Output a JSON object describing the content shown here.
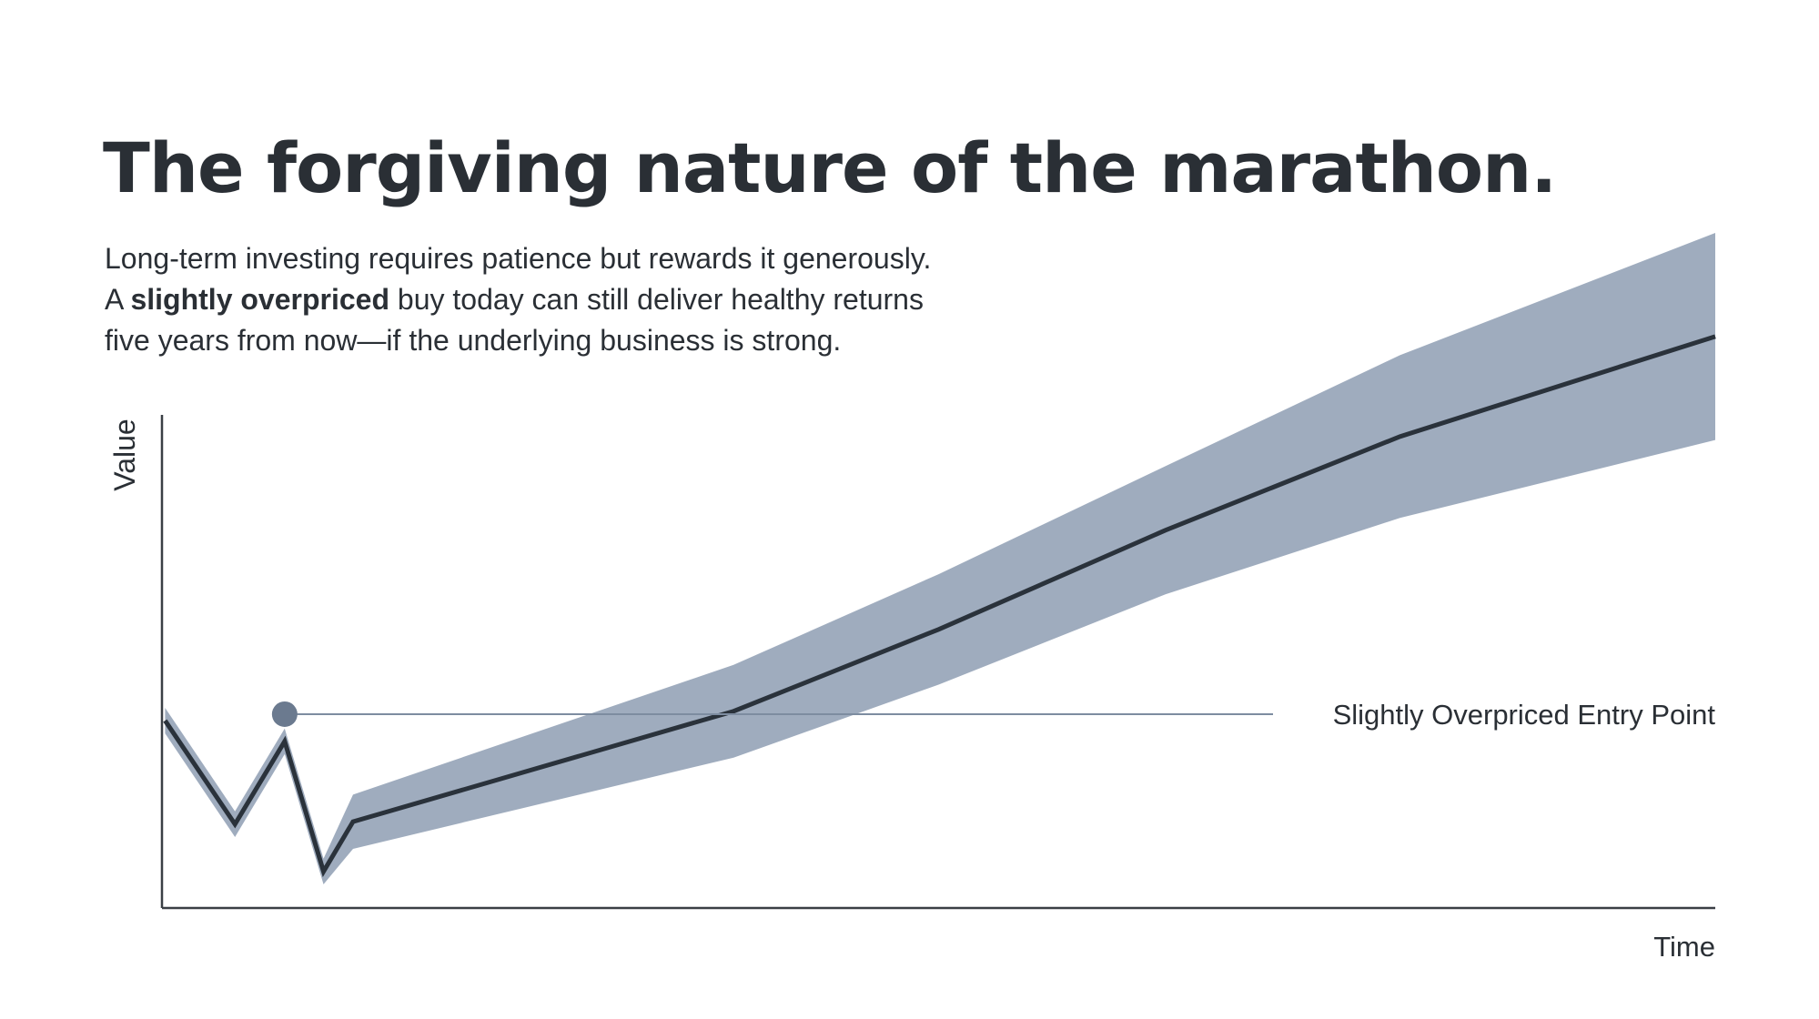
{
  "title": "The forgiving nature of the marathon.",
  "subtitle": {
    "line1": "Long-term investing requires patience but rewards it generously.",
    "line2_pre": "A ",
    "line2_bold": "slightly overpriced",
    "line2_post": " buy today can still deliver healthy returns",
    "line3": "five years from now—if the underlying business is strong."
  },
  "chart_data": {
    "type": "line",
    "xlabel": "Time",
    "ylabel": "Value",
    "xlim": [
      0,
      100
    ],
    "ylim": [
      0,
      100
    ],
    "grid": false,
    "ticks": false,
    "series": [
      {
        "x": [
          0.2,
          4.7,
          7.9,
          10.4,
          12.3,
          36.8,
          50,
          64.6,
          79.7,
          100
        ],
        "y": [
          38,
          17,
          33.8,
          7.4,
          17.5,
          39.9,
          56.5,
          76.6,
          95.6,
          115.9
        ],
        "band_halfwidth": [
          2.6,
          2.6,
          2.6,
          2.6,
          5.5,
          9.4,
          11.2,
          13,
          16.5,
          21
        ]
      }
    ],
    "annotation": {
      "label": "Slightly Overpriced Entry Point",
      "x": 7.9,
      "y": 39.3
    },
    "colors": {
      "line": "#2a323b",
      "band": "#9aa8ba",
      "marker": "#6b7a8f",
      "reference_line": "#7d8ca0",
      "axis": "#3a3f45"
    }
  }
}
